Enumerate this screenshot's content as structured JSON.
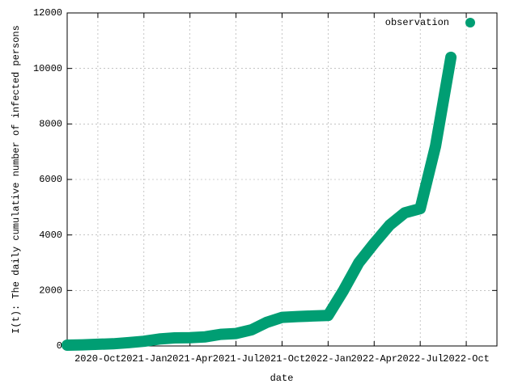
{
  "chart_data": {
    "type": "line",
    "y_label": "I(t): The daily cumulative number of infected persons",
    "x_label": "date",
    "x": [
      "2020-Aug",
      "2020-Sep",
      "2020-Oct",
      "2020-Nov",
      "2020-Dec",
      "2021-Jan",
      "2021-Feb",
      "2021-Mar",
      "2021-Apr",
      "2021-May",
      "2021-Jun",
      "2021-Jul",
      "2021-Aug",
      "2021-Sep",
      "2021-Oct",
      "2021-Nov",
      "2021-Dec",
      "2022-Jan",
      "2022-Feb",
      "2022-Mar",
      "2022-Apr",
      "2022-May",
      "2022-Jun",
      "2022-Jul",
      "2022-Aug",
      "2022-Sep"
    ],
    "series": [
      {
        "name": "observation",
        "color": "#009e73",
        "values": [
          30,
          40,
          60,
          80,
          120,
          170,
          250,
          290,
          300,
          330,
          420,
          450,
          580,
          850,
          1030,
          1060,
          1080,
          1100,
          2000,
          3000,
          3700,
          4350,
          4800,
          4950,
          7200,
          10400
        ]
      }
    ],
    "xlim": [
      "2020-Aug",
      "2022-Dec"
    ],
    "xticks": [
      "2020-Oct",
      "2021-Jan",
      "2021-Apr",
      "2021-Jul",
      "2021-Oct",
      "2022-Jan",
      "2022-Apr",
      "2022-Jul",
      "2022-Oct"
    ],
    "ylim": [
      0,
      12000
    ],
    "yticks": [
      0,
      2000,
      4000,
      6000,
      8000,
      10000,
      12000
    ],
    "grid": true,
    "legend": "top-right"
  }
}
